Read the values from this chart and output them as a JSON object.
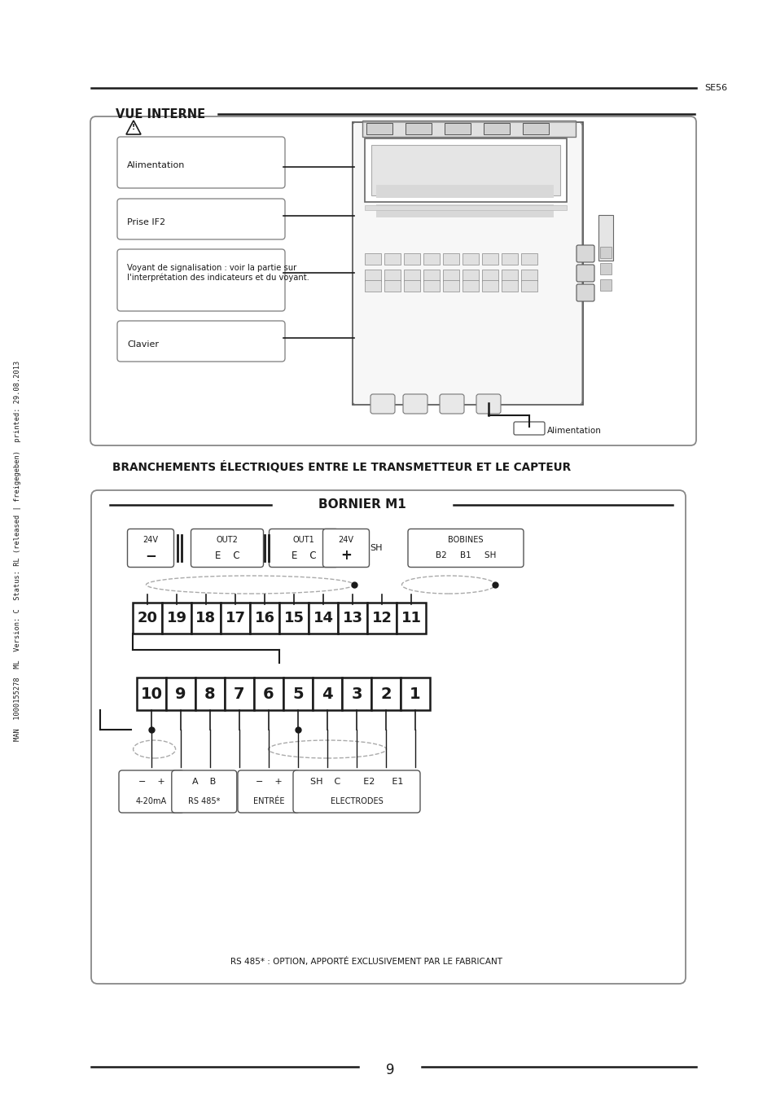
{
  "page_num": "9",
  "se_label": "SE56",
  "side_text": "MAN  1000155278  ML  Version: C  Status: RL (released | freigegeben)  printed: 29.08.2013",
  "vue_interne_title": "VUE INTERNE",
  "section2_title": "BRANCHEMENTS ÉLECTRIQUES ENTRE LE TRANSMETTEUR ET LE CAPTEUR",
  "bornier_title": "BORNIER M1",
  "alimentation_bottom": "Alimentation",
  "row1_numbers": [
    "20",
    "19",
    "18",
    "17",
    "16",
    "15",
    "14",
    "13",
    "12",
    "11"
  ],
  "row2_numbers": [
    "10",
    "9",
    "8",
    "7",
    "6",
    "5",
    "4",
    "3",
    "2",
    "1"
  ],
  "rs485_note": "RS 485* : OPTION, APPORTÉ EXCLUSIVEMENT PAR LE FABRICANT",
  "bg_color": "#ffffff",
  "line_color": "#1a1a1a",
  "text_color": "#1a1a1a",
  "gray1": "#888888",
  "gray2": "#aaaaaa",
  "gray3": "#cccccc",
  "gray_fill": "#e8e8e8",
  "gray_fill2": "#f0f0f0"
}
